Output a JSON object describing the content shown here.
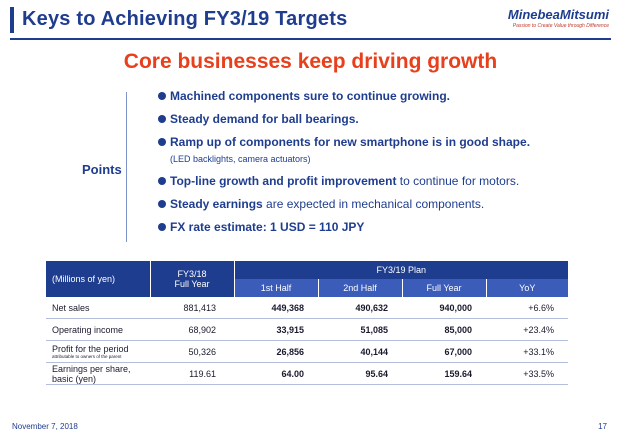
{
  "header": {
    "title": "Keys to Achieving FY3/19 Targets",
    "logo_name": "MinebeaMitsumi",
    "logo_tagline": "Passion to Create Value through Difference"
  },
  "subtitle": "Core businesses keep driving growth",
  "points": {
    "label": "Points",
    "bullets": [
      {
        "bold": "Machined components sure to continue growing.",
        "plain": ""
      },
      {
        "bold": "Steady demand for ball bearings.",
        "plain": ""
      },
      {
        "bold": "Ramp up of components for new smartphone is in good shape.",
        "plain": ""
      },
      {
        "bold": "Top-line growth and profit improvement",
        "plain": " to continue for motors."
      },
      {
        "bold": "Steady earnings",
        "plain": " are expected in mechanical components."
      },
      {
        "bold": "FX rate estimate: 1 USD = 110 JPY",
        "plain": ""
      }
    ],
    "sub_note": "(LED backlights, camera actuators)"
  },
  "table": {
    "unit_label": "(Millions of yen)",
    "fy18_label": "FY3/18",
    "fy18_sub": "Full Year",
    "plan_label": "FY3/19 Plan",
    "plan_cols": [
      "1st Half",
      "2nd Half",
      "Full Year",
      "YoY"
    ],
    "rows": [
      {
        "label": "Net sales",
        "sub": "",
        "fy18": "881,413",
        "h1": "449,368",
        "h2": "490,632",
        "fy": "940,000",
        "yoy": "+6.6%"
      },
      {
        "label": "Operating income",
        "sub": "",
        "fy18": "68,902",
        "h1": "33,915",
        "h2": "51,085",
        "fy": "85,000",
        "yoy": "+23.4%"
      },
      {
        "label": "Profit for the period",
        "sub": "attributable to owners of the parent",
        "fy18": "50,326",
        "h1": "26,856",
        "h2": "40,144",
        "fy": "67,000",
        "yoy": "+33.1%"
      },
      {
        "label": "Earnings per share, basic (yen)",
        "sub": "",
        "fy18": "119.61",
        "h1": "64.00",
        "h2": "95.64",
        "fy": "159.64",
        "yoy": "+33.5%"
      }
    ]
  },
  "footer": {
    "date": "November 7, 2018",
    "page": "17"
  }
}
